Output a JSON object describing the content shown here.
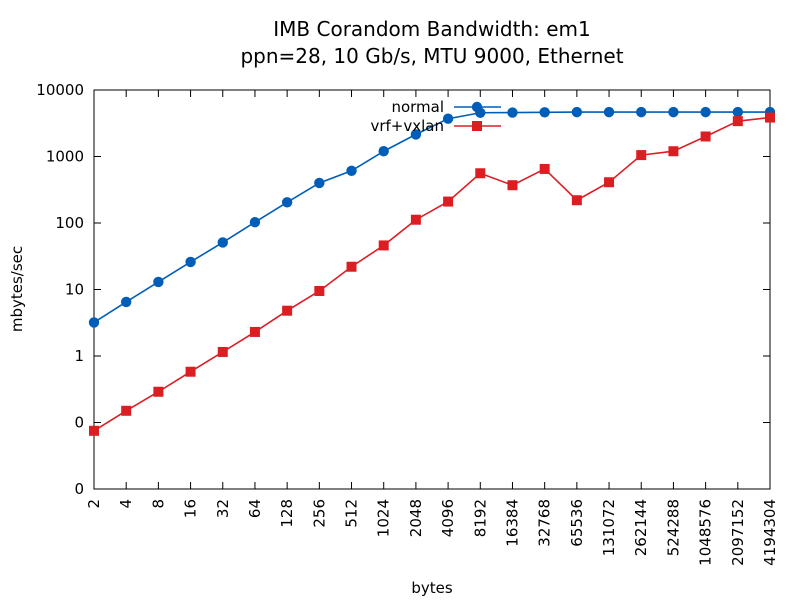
{
  "chart_data": {
    "type": "line",
    "title": "IMB Corandom Bandwidth: em1",
    "subtitle": "ppn=28, 10 Gb/s, MTU 9000, Ethernet",
    "xlabel": "bytes",
    "ylabel": "mbytes/sec",
    "x_scale": "log2",
    "y_scale": "log10",
    "xlim": [
      2,
      4194304
    ],
    "ylim": [
      0.01,
      10000
    ],
    "x": [
      2,
      4,
      8,
      16,
      32,
      64,
      128,
      256,
      512,
      1024,
      2048,
      4096,
      8192,
      16384,
      32768,
      65536,
      131072,
      262144,
      524288,
      1048576,
      2097152,
      4194304
    ],
    "x_tick_labels": [
      "2",
      "4",
      "8",
      "16",
      "32",
      "64",
      "128",
      "256",
      "512",
      "1024",
      "2048",
      "4096",
      "8192",
      "16384",
      "32768",
      "65536",
      "131072",
      "262144",
      "524288",
      "1048576",
      "2097152",
      "4194304"
    ],
    "y_ticks": [
      0.01,
      0.1,
      1,
      10,
      100,
      1000,
      10000
    ],
    "y_tick_labels": [
      "0",
      "0",
      "1",
      "10",
      "100",
      "1000",
      "10000"
    ],
    "grid": false,
    "legend_position": "top-center",
    "series": [
      {
        "name": "normal",
        "color": "#005eb8",
        "marker": "circle",
        "values": [
          3.2,
          6.5,
          13,
          26,
          51,
          103,
          205,
          400,
          610,
          1200,
          2150,
          3700,
          4550,
          4580,
          4620,
          4650,
          4650,
          4650,
          4650,
          4650,
          4650,
          4650
        ]
      },
      {
        "name": "vrf+vxlan",
        "color": "#dc1e23",
        "marker": "square",
        "values": [
          0.075,
          0.15,
          0.29,
          0.58,
          1.15,
          2.3,
          4.8,
          9.5,
          22,
          46,
          112,
          210,
          560,
          370,
          650,
          220,
          410,
          1050,
          1200,
          2000,
          3400,
          3850
        ]
      }
    ]
  }
}
